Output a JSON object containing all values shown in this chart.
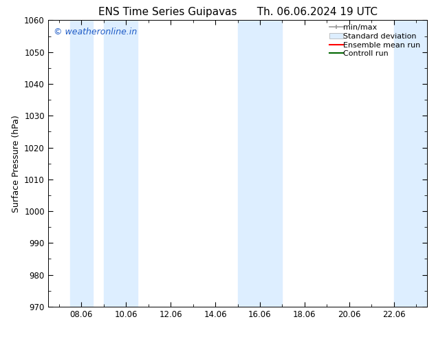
{
  "title_left": "ENS Time Series Guipavas",
  "title_right": "Th. 06.06.2024 19 UTC",
  "ylabel": "Surface Pressure (hPa)",
  "ylim": [
    970,
    1060
  ],
  "yticks": [
    970,
    980,
    990,
    1000,
    1010,
    1020,
    1030,
    1040,
    1050,
    1060
  ],
  "xtick_positions": [
    8,
    10,
    12,
    14,
    16,
    18,
    20,
    22
  ],
  "xtick_labels": [
    "08.06",
    "10.06",
    "12.06",
    "14.06",
    "16.06",
    "18.06",
    "20.06",
    "22.06"
  ],
  "xlim": [
    6.5,
    23.5
  ],
  "watermark": "© weatheronline.in",
  "watermark_color": "#1e5bc6",
  "bg_color": "#ffffff",
  "plot_bg_color": "#ffffff",
  "shaded_band_color": "#ddeeff",
  "shaded_bands": [
    {
      "x_start": 7.5,
      "x_end": 8.5
    },
    {
      "x_start": 9.0,
      "x_end": 10.5
    },
    {
      "x_start": 15.0,
      "x_end": 17.0
    },
    {
      "x_start": 22.0,
      "x_end": 23.5
    }
  ],
  "legend_entries": [
    {
      "label": "min/max",
      "color": "#aaaaaa",
      "type": "errorbar"
    },
    {
      "label": "Standard deviation",
      "color": "#ccddef",
      "type": "bar"
    },
    {
      "label": "Ensemble mean run",
      "color": "red",
      "type": "line"
    },
    {
      "label": "Controll run",
      "color": "green",
      "type": "line"
    }
  ],
  "title_fontsize": 11,
  "axis_label_fontsize": 9,
  "tick_fontsize": 8.5,
  "legend_fontsize": 8,
  "watermark_fontsize": 9
}
